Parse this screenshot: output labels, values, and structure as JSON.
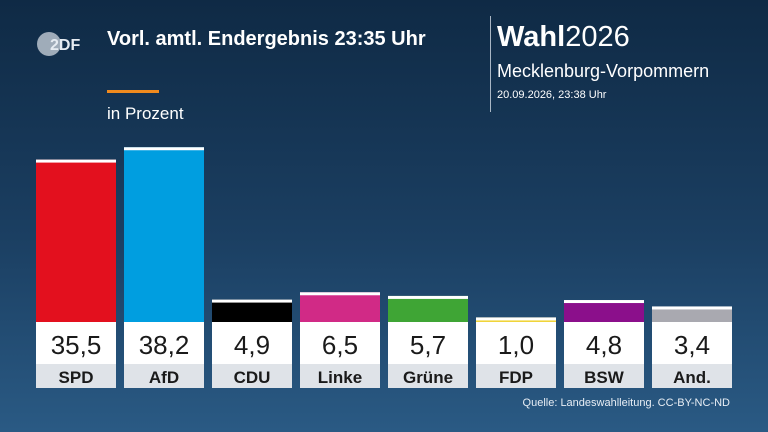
{
  "logo_text": "2DF",
  "header": {
    "title": "Vorl. amtl. Endergebnis 23:35 Uhr",
    "subtitle": "in Prozent"
  },
  "brand": {
    "wahl": "Wahl",
    "year": "2026",
    "region": "Mecklenburg-Vorpommern",
    "timestamp": "20.09.2026, 23:38 Uhr"
  },
  "footer": {
    "source": "Quelle: Landeswahlleitung. CC-BY-NC-ND"
  },
  "chart_data": {
    "type": "bar",
    "title": "Vorl. amtl. Endergebnis 23:35 Uhr",
    "ylabel": "in Prozent",
    "categories": [
      "SPD",
      "AfD",
      "CDU",
      "Linke",
      "Grüne",
      "FDP",
      "BSW",
      "And."
    ],
    "values": [
      35.5,
      38.2,
      4.9,
      6.5,
      5.7,
      1.0,
      4.8,
      3.4
    ],
    "labels": [
      "35,5",
      "38,2",
      "4,9",
      "6,5",
      "5,7",
      "1,0",
      "4,8",
      "3,4"
    ],
    "colors": [
      "#e3101e",
      "#009ee0",
      "#000000",
      "#d12a86",
      "#3fa535",
      "#f0d43a",
      "#8b0f8b",
      "#a9a9b0"
    ],
    "ylim": [
      0,
      40
    ],
    "grid": false,
    "legend": "none"
  }
}
